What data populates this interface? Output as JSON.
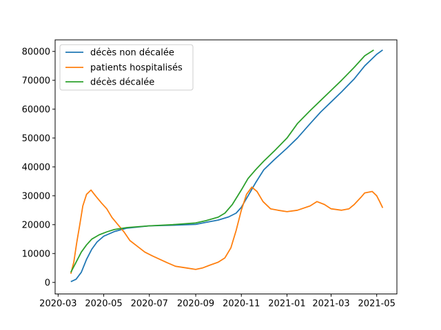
{
  "chart_data": {
    "type": "line",
    "title": "",
    "xlabel": "",
    "ylabel": "",
    "x_ticks": [
      "2020-03",
      "2020-05",
      "2020-07",
      "2020-09",
      "2020-11",
      "2021-01",
      "2021-03",
      "2021-05"
    ],
    "y_ticks": [
      "0",
      "10000",
      "20000",
      "30000",
      "40000",
      "50000",
      "60000",
      "70000",
      "80000"
    ],
    "xlim": [
      "2020-02-26",
      "2021-05-28"
    ],
    "ylim": [
      -4000,
      84000
    ],
    "grid": false,
    "legend_position": "top-left",
    "series": [
      {
        "name": "décès non décalée",
        "color": "#1f77b4",
        "points": [
          [
            "2020-03-18",
            264
          ],
          [
            "2020-03-25",
            1100
          ],
          [
            "2020-04-01",
            3500
          ],
          [
            "2020-04-08",
            8000
          ],
          [
            "2020-04-15",
            11500
          ],
          [
            "2020-04-22",
            14000
          ],
          [
            "2020-05-01",
            16000
          ],
          [
            "2020-05-15",
            17600
          ],
          [
            "2020-06-01",
            18800
          ],
          [
            "2020-07-01",
            19600
          ],
          [
            "2020-08-01",
            19800
          ],
          [
            "2020-09-01",
            20100
          ],
          [
            "2020-09-15",
            20800
          ],
          [
            "2020-10-01",
            21600
          ],
          [
            "2020-10-15",
            22700
          ],
          [
            "2020-10-25",
            24000
          ],
          [
            "2020-11-01",
            26000
          ],
          [
            "2020-11-10",
            30000
          ],
          [
            "2020-11-20",
            34500
          ],
          [
            "2020-12-01",
            39000
          ],
          [
            "2020-12-15",
            42500
          ],
          [
            "2021-01-01",
            46500
          ],
          [
            "2021-01-15",
            50000
          ],
          [
            "2021-02-01",
            55000
          ],
          [
            "2021-02-15",
            59000
          ],
          [
            "2021-03-01",
            62500
          ],
          [
            "2021-03-15",
            66000
          ],
          [
            "2021-04-01",
            70500
          ],
          [
            "2021-04-15",
            75000
          ],
          [
            "2021-05-01",
            79000
          ],
          [
            "2021-05-09",
            80500
          ]
        ]
      },
      {
        "name": "patients hospitalisés",
        "color": "#ff7f0e",
        "points": [
          [
            "2020-03-18",
            3000
          ],
          [
            "2020-03-22",
            7000
          ],
          [
            "2020-03-26",
            14000
          ],
          [
            "2020-03-30",
            20000
          ],
          [
            "2020-04-03",
            26500
          ],
          [
            "2020-04-08",
            30500
          ],
          [
            "2020-04-14",
            32000
          ],
          [
            "2020-04-20",
            30000
          ],
          [
            "2020-04-28",
            27500
          ],
          [
            "2020-05-05",
            25500
          ],
          [
            "2020-05-12",
            22500
          ],
          [
            "2020-05-20",
            20000
          ],
          [
            "2020-05-28",
            17500
          ],
          [
            "2020-06-05",
            14500
          ],
          [
            "2020-06-15",
            12500
          ],
          [
            "2020-06-25",
            10500
          ],
          [
            "2020-07-05",
            9200
          ],
          [
            "2020-07-15",
            8000
          ],
          [
            "2020-07-25",
            6800
          ],
          [
            "2020-08-05",
            5600
          ],
          [
            "2020-08-20",
            5000
          ],
          [
            "2020-09-01",
            4500
          ],
          [
            "2020-09-10",
            5000
          ],
          [
            "2020-09-20",
            6000
          ],
          [
            "2020-10-01",
            7000
          ],
          [
            "2020-10-10",
            8500
          ],
          [
            "2020-10-18",
            12000
          ],
          [
            "2020-10-25",
            18000
          ],
          [
            "2020-11-01",
            25000
          ],
          [
            "2020-11-08",
            30500
          ],
          [
            "2020-11-15",
            33000
          ],
          [
            "2020-11-22",
            31500
          ],
          [
            "2020-11-30",
            28000
          ],
          [
            "2020-12-10",
            25500
          ],
          [
            "2020-12-20",
            25000
          ],
          [
            "2021-01-01",
            24500
          ],
          [
            "2021-01-15",
            25000
          ],
          [
            "2021-02-01",
            26500
          ],
          [
            "2021-02-10",
            28000
          ],
          [
            "2021-02-20",
            27000
          ],
          [
            "2021-03-01",
            25500
          ],
          [
            "2021-03-15",
            25000
          ],
          [
            "2021-03-25",
            25500
          ],
          [
            "2021-04-01",
            27000
          ],
          [
            "2021-04-10",
            29500
          ],
          [
            "2021-04-15",
            31000
          ],
          [
            "2021-04-25",
            31500
          ],
          [
            "2021-05-01",
            30000
          ],
          [
            "2021-05-05",
            28000
          ],
          [
            "2021-05-09",
            25800
          ]
        ]
      },
      {
        "name": "décès décalée",
        "color": "#2ca02c",
        "points": [
          [
            "2020-03-18",
            3500
          ],
          [
            "2020-03-25",
            7000
          ],
          [
            "2020-04-01",
            10500
          ],
          [
            "2020-04-08",
            13000
          ],
          [
            "2020-04-15",
            15000
          ],
          [
            "2020-04-25",
            16500
          ],
          [
            "2020-05-05",
            17500
          ],
          [
            "2020-05-15",
            18300
          ],
          [
            "2020-06-01",
            19000
          ],
          [
            "2020-07-01",
            19600
          ],
          [
            "2020-08-01",
            20000
          ],
          [
            "2020-09-01",
            20600
          ],
          [
            "2020-09-15",
            21400
          ],
          [
            "2020-10-01",
            22600
          ],
          [
            "2020-10-10",
            24000
          ],
          [
            "2020-10-20",
            27000
          ],
          [
            "2020-11-01",
            32000
          ],
          [
            "2020-11-10",
            36000
          ],
          [
            "2020-11-20",
            39000
          ],
          [
            "2020-12-01",
            42000
          ],
          [
            "2020-12-15",
            45500
          ],
          [
            "2021-01-01",
            50000
          ],
          [
            "2021-01-15",
            55000
          ],
          [
            "2021-02-01",
            59500
          ],
          [
            "2021-02-15",
            63000
          ],
          [
            "2021-03-01",
            66500
          ],
          [
            "2021-03-15",
            70000
          ],
          [
            "2021-04-01",
            74500
          ],
          [
            "2021-04-15",
            78500
          ],
          [
            "2021-04-27",
            80500
          ]
        ]
      }
    ]
  }
}
